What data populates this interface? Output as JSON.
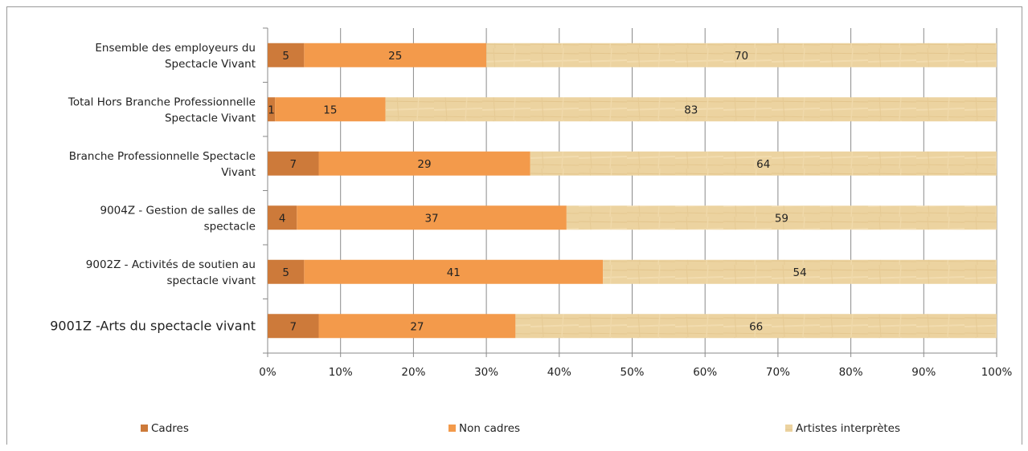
{
  "chart_data": {
    "type": "bar",
    "orientation": "horizontal",
    "stacked": "percent",
    "categories": [
      [
        "Ensemble des employeurs du",
        "Spectacle Vivant"
      ],
      [
        "Total Hors Branche Professionnelle",
        "Spectacle Vivant"
      ],
      [
        "Branche Professionnelle Spectacle",
        "Vivant"
      ],
      [
        "9004Z - Gestion de salles de",
        "spectacle"
      ],
      [
        "9002Z - Activités de soutien au",
        "spectacle vivant"
      ],
      [
        "9001Z -Arts du spectacle vivant"
      ]
    ],
    "series": [
      {
        "name": "Cadres",
        "color": "#cd7a3a",
        "values": [
          5,
          1,
          7,
          4,
          5,
          7
        ],
        "labels": [
          "5",
          "1",
          "7",
          "4",
          "5",
          "7"
        ]
      },
      {
        "name": "Non cadres",
        "color": "#f39a4b",
        "values": [
          25,
          15,
          29,
          37,
          41,
          27
        ],
        "labels": [
          "25",
          "15",
          "29",
          "37",
          "41",
          "27"
        ]
      },
      {
        "name": "Artistes interprètes",
        "color": "#ecd3a0",
        "values": [
          70,
          83,
          64,
          59,
          54,
          66
        ],
        "labels": [
          "70",
          "83",
          "64",
          "59",
          "54",
          "66"
        ]
      }
    ],
    "x_ticks": [
      "0%",
      "10%",
      "20%",
      "30%",
      "40%",
      "50%",
      "60%",
      "70%",
      "80%",
      "90%",
      "100%"
    ],
    "xlim": [
      0,
      100
    ],
    "grid": "vertical",
    "legend_position": "bottom"
  }
}
